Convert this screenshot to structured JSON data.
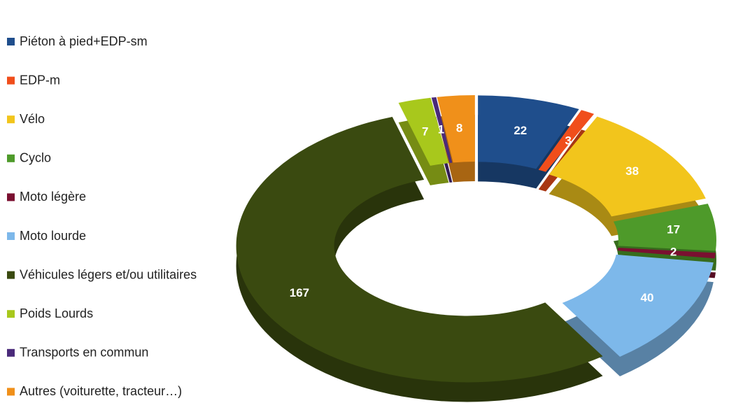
{
  "chart_data": {
    "type": "doughnut",
    "categories": [
      "Piéton à pied+EDP-sm",
      "EDP-m",
      "Vélo",
      "Cyclo",
      "Moto légère",
      "Moto lourde",
      "Véhicules légers et/ou utilitaires",
      "Poids Lourds",
      "Transports en commun",
      "Autres (voiturette, tracteur…)"
    ],
    "values": [
      22,
      3,
      38,
      17,
      2,
      40,
      167,
      7,
      1,
      8
    ],
    "colors": [
      "#1f4e8c",
      "#f04e1b",
      "#f2c51c",
      "#4e9a2a",
      "#7a1030",
      "#7db8ea",
      "#3a4a10",
      "#a8c81c",
      "#4a2a7a",
      "#f0901a"
    ]
  }
}
